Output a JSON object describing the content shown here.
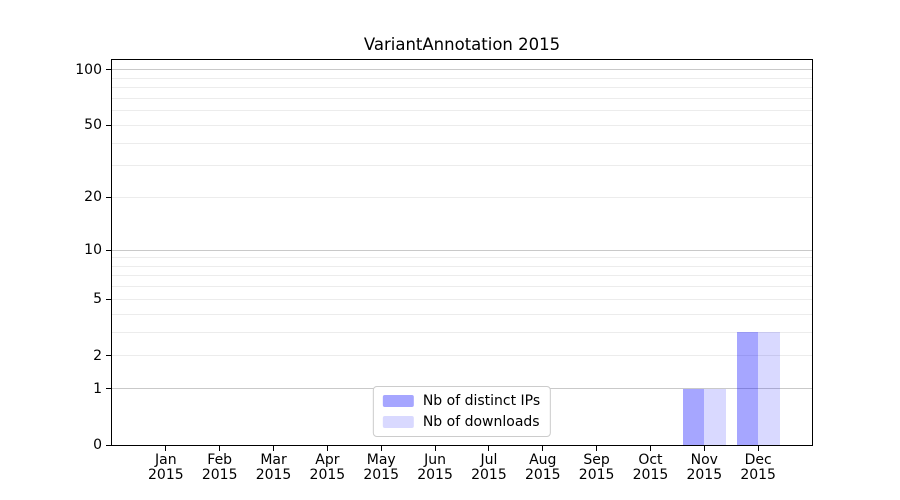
{
  "chart_data": {
    "type": "bar",
    "title": "VariantAnnotation 2015",
    "x": {
      "categories": [
        "Jan",
        "Feb",
        "Mar",
        "Apr",
        "May",
        "Jun",
        "Jul",
        "Aug",
        "Sep",
        "Oct",
        "Nov",
        "Dec"
      ],
      "year": "2015"
    },
    "series": [
      {
        "name": "Nb of distinct IPs",
        "color": "#0000ff",
        "alpha": 0.35,
        "values": [
          0,
          0,
          0,
          0,
          0,
          0,
          0,
          0,
          0,
          0,
          1,
          3
        ]
      },
      {
        "name": "Nb of downloads",
        "color": "#0000ff",
        "alpha": 0.15,
        "values": [
          0,
          0,
          0,
          0,
          0,
          0,
          0,
          0,
          0,
          0,
          1,
          3
        ]
      }
    ],
    "y_axis": {
      "scale": "log1p",
      "ticks": [
        0,
        1,
        2,
        5,
        10,
        20,
        50,
        100
      ],
      "decade_gridlines": [
        1,
        10,
        100
      ],
      "minor_gridlines": [
        2,
        3,
        4,
        5,
        6,
        7,
        8,
        9,
        20,
        30,
        40,
        50,
        60,
        70,
        80,
        90
      ],
      "max": 100
    },
    "grid": {
      "orientation": "horizontal",
      "major_color": "#c9c9c9",
      "minor_color": "#ececec"
    },
    "legend": {
      "position": "lower-center"
    },
    "axis_color": "#000000",
    "background": "#ffffff"
  }
}
